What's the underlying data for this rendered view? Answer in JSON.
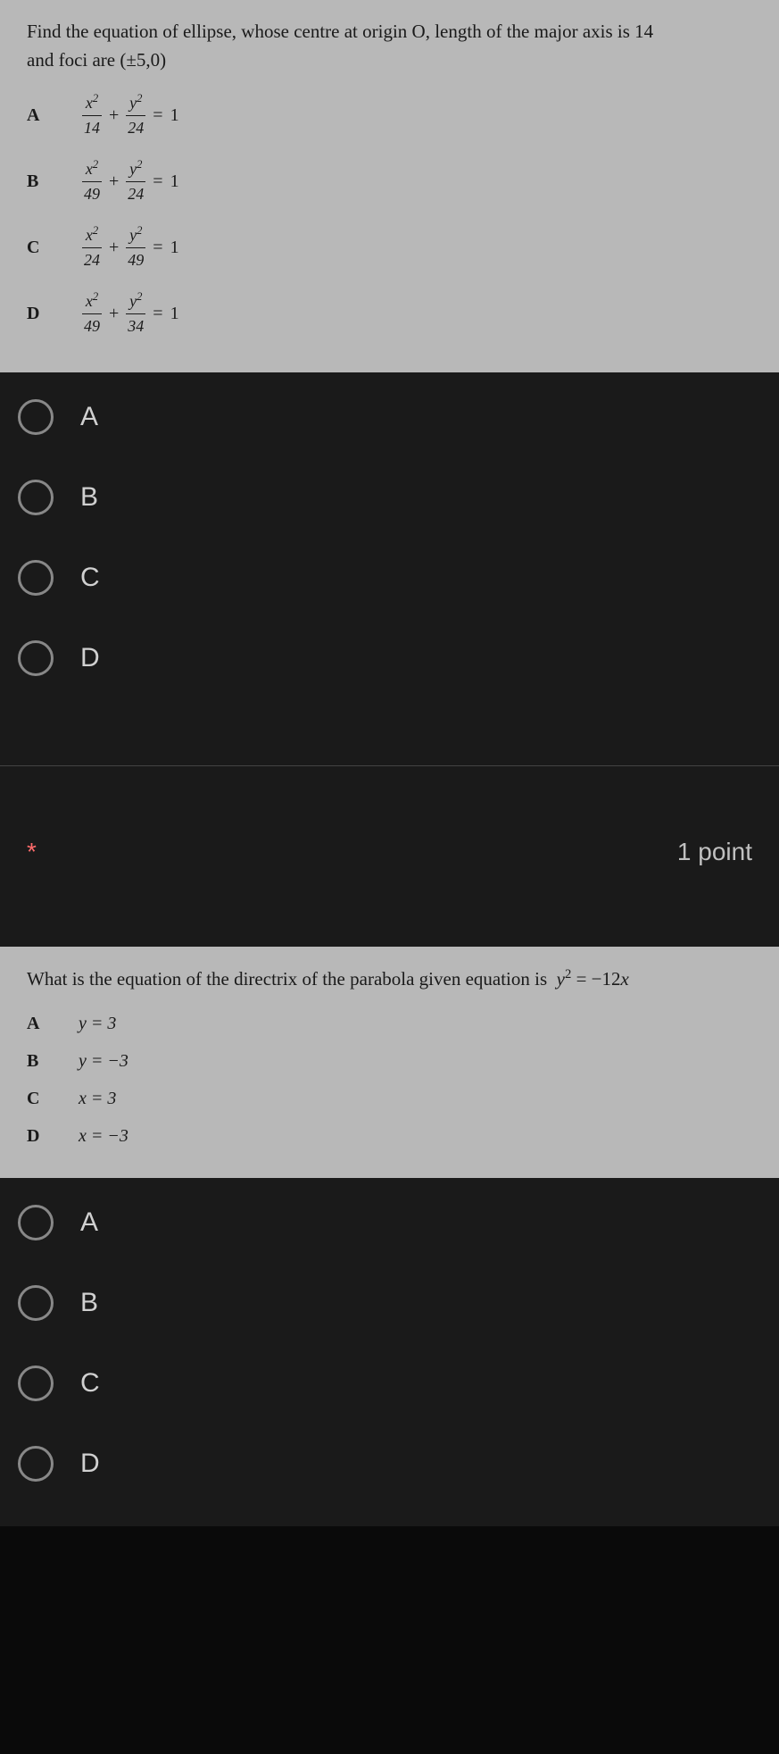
{
  "question1": {
    "prompt_line1": "Find the equation of ellipse, whose centre at origin O, length of the major axis is 14",
    "prompt_line2": "and foci are (±5,0)",
    "options": {
      "A": {
        "letter": "A",
        "num1": "x",
        "den1": "14",
        "num2": "y",
        "den2": "24"
      },
      "B": {
        "letter": "B",
        "num1": "x",
        "den1": "49",
        "num2": "y",
        "den2": "24"
      },
      "C": {
        "letter": "C",
        "num1": "x",
        "den1": "24",
        "num2": "y",
        "den2": "49"
      },
      "D": {
        "letter": "D",
        "num1": "x",
        "den1": "49",
        "num2": "y",
        "den2": "34"
      }
    }
  },
  "question2": {
    "points": "1 point",
    "required": "*",
    "prompt": "What is the equation of the directrix of the parabola given equation is  y² = −12x",
    "options": {
      "A": {
        "letter": "A",
        "eq_var": "y",
        "eq_val": "3"
      },
      "B": {
        "letter": "B",
        "eq_var": "y",
        "eq_val": "−3"
      },
      "C": {
        "letter": "C",
        "eq_var": "x",
        "eq_val": "3"
      },
      "D": {
        "letter": "D",
        "eq_var": "x",
        "eq_val": "−3"
      }
    }
  },
  "answer_labels": {
    "A": "A",
    "B": "B",
    "C": "C",
    "D": "D"
  },
  "colors": {
    "background": "#0a0a0a",
    "question_bg": "#b8b8b8",
    "text_dark": "#1a1a1a",
    "text_light": "#d0d0d0",
    "radio_border": "#888",
    "required": "#ff6b6b",
    "divider": "#444"
  }
}
